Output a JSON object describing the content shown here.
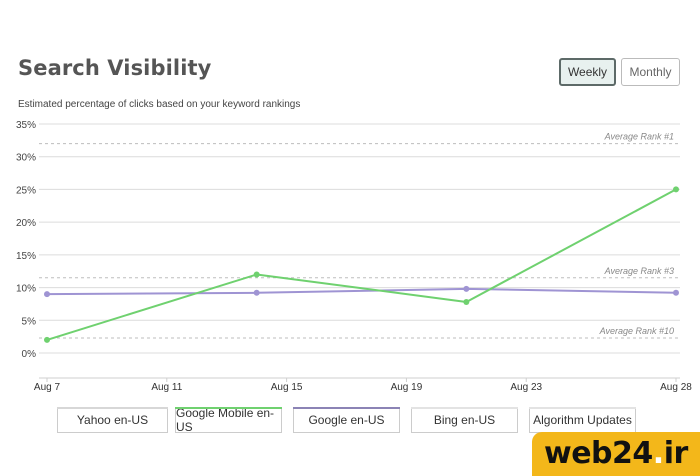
{
  "header": {
    "title": "Search Visibility",
    "subtitle": "Estimated percentage of clicks based on your keyword rankings",
    "toggles": [
      {
        "label": "Weekly",
        "active": true
      },
      {
        "label": "Monthly",
        "active": false
      }
    ]
  },
  "chart_data": {
    "type": "line",
    "title": "Search Visibility",
    "subtitle": "Estimated percentage of clicks based on your keyword rankings",
    "xlabel": "",
    "ylabel": "",
    "y_ticks": [
      "35%",
      "30%",
      "25%",
      "20%",
      "15%",
      "10%",
      "5%",
      "0%"
    ],
    "ylim": [
      0,
      35
    ],
    "x_ticks": [
      "Aug 7",
      "Aug 11",
      "Aug 15",
      "Aug 19",
      "Aug 23",
      "Aug 28"
    ],
    "x_tick_days": [
      7,
      11,
      15,
      19,
      23,
      28
    ],
    "xlim_days": [
      7,
      28
    ],
    "grid": true,
    "reference_lines": [
      {
        "label": "Average Rank #1",
        "value": 32
      },
      {
        "label": "Average Rank #3",
        "value": 11.5
      },
      {
        "label": "Average Rank #10",
        "value": 2.3
      }
    ],
    "series": [
      {
        "name": "Google Mobile en-US",
        "color": "#6fd16f",
        "x_days": [
          7,
          14,
          21,
          28
        ],
        "values": [
          2.0,
          12.0,
          7.8,
          25.0
        ]
      },
      {
        "name": "Google en-US",
        "color": "#9f94d3",
        "x_days": [
          7,
          14,
          21,
          28
        ],
        "values": [
          9.0,
          9.2,
          9.8,
          9.2
        ]
      }
    ]
  },
  "legend": {
    "items": [
      {
        "label": "Yahoo en-US",
        "color": "#d7d7d7",
        "active": false
      },
      {
        "label": "Google Mobile en-US",
        "color": "#6fd16f",
        "active": true
      },
      {
        "label": "Google en-US",
        "color": "#8b83b5",
        "active": true
      },
      {
        "label": "Bing en-US",
        "color": "#e3e3e3",
        "active": false
      },
      {
        "label": "Algorithm Updates",
        "color": "#e3e3e3",
        "active": false
      }
    ]
  },
  "watermark": {
    "text_main": "web24",
    "text_dot": ".",
    "text_tld": "ir"
  }
}
